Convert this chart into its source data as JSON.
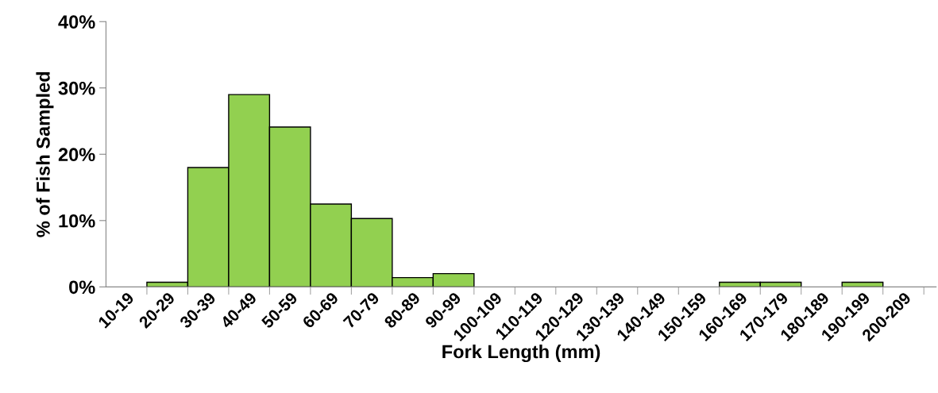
{
  "chart_data": {
    "type": "bar",
    "xlabel": "Fork Length (mm)",
    "ylabel": "% of Fish Sampled",
    "categories": [
      "10-19",
      "20-29",
      "30-39",
      "40-49",
      "50-59",
      "60-69",
      "70-79",
      "80-89",
      "90-99",
      "100-109",
      "110-119",
      "120-129",
      "130-139",
      "140-149",
      "150-159",
      "160-169",
      "170-179",
      "180-189",
      "190-199",
      "200-209"
    ],
    "values": [
      0,
      0.7,
      18.0,
      29.0,
      24.1,
      12.5,
      10.3,
      1.4,
      2.0,
      0,
      0,
      0,
      0,
      0,
      0,
      0.7,
      0.7,
      0,
      0.7,
      0
    ],
    "color": "#92d050",
    "ylim": [
      0,
      40
    ],
    "yticks": [
      {
        "value": 0,
        "label": "0%"
      },
      {
        "value": 10,
        "label": "10%"
      },
      {
        "value": 20,
        "label": "20%"
      },
      {
        "value": 30,
        "label": "30%"
      },
      {
        "value": 40,
        "label": "40%"
      }
    ],
    "grid": false,
    "legend": false
  }
}
